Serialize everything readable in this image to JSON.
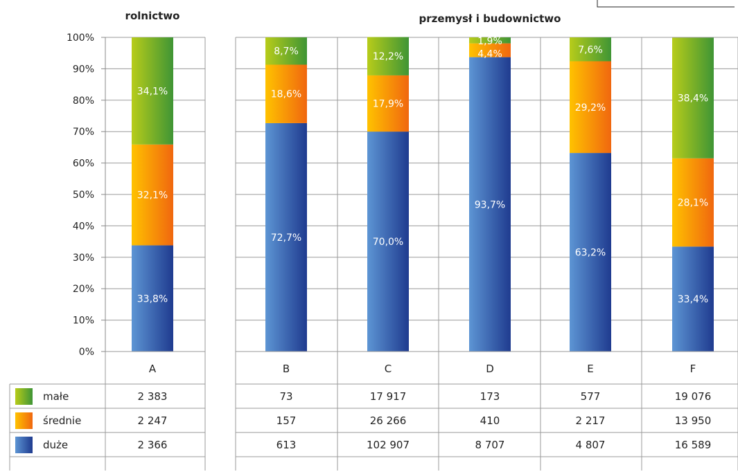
{
  "chart_data": {
    "type": "bar",
    "stacked": true,
    "percent_stacked": true,
    "groups": [
      {
        "title": "rolnictwo",
        "categories": [
          "A"
        ]
      },
      {
        "title": "przemysł i budownictwo",
        "categories": [
          "B",
          "C",
          "D",
          "E",
          "F"
        ]
      }
    ],
    "categories": [
      "A",
      "B",
      "C",
      "D",
      "E",
      "F"
    ],
    "y_ticks": [
      "0%",
      "10%",
      "20%",
      "30%",
      "40%",
      "50%",
      "60%",
      "70%",
      "80%",
      "90%",
      "100%"
    ],
    "ylim": [
      0,
      100
    ],
    "series": [
      {
        "name": "duże",
        "color_from": "#5d95d4",
        "color_to": "#1f3b8f",
        "percent": [
          33.8,
          72.7,
          70.0,
          93.7,
          63.2,
          33.4
        ],
        "percent_labels": [
          "33,8%",
          "72,7%",
          "70,0%",
          "93,7%",
          "63,2%",
          "33,4%"
        ],
        "counts": [
          "2 366",
          "613",
          "102 907",
          "8 707",
          "4 807",
          "16 589"
        ]
      },
      {
        "name": "średnie",
        "color_from": "#ffc200",
        "color_to": "#f0670f",
        "percent": [
          32.1,
          18.6,
          17.9,
          4.4,
          29.2,
          28.1
        ],
        "percent_labels": [
          "32,1%",
          "18,6%",
          "17,9%",
          "4,4%",
          "29,2%",
          "28,1%"
        ],
        "counts": [
          "2 247",
          "157",
          "26 266",
          "410",
          "2 217",
          "13 950"
        ]
      },
      {
        "name": "małe",
        "color_from": "#b7cc1a",
        "color_to": "#3f9535",
        "percent": [
          34.1,
          8.7,
          12.2,
          1.9,
          7.6,
          38.4
        ],
        "percent_labels": [
          "34,1%",
          "8,7%",
          "12,2%",
          "1,9%",
          "7,6%",
          "38,4%"
        ],
        "counts": [
          "2 383",
          "73",
          "17 917",
          "173",
          "577",
          "19 076"
        ]
      }
    ],
    "table_row_order": [
      "małe",
      "średnie",
      "duże"
    ],
    "grid": true,
    "legend_position": "bottom-left table"
  }
}
